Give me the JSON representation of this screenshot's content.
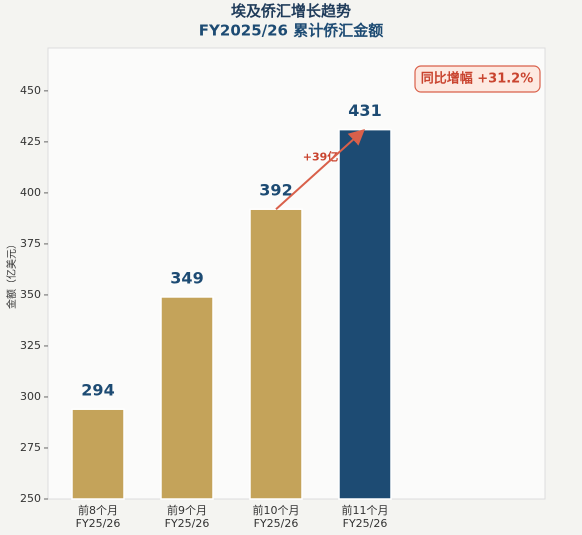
{
  "chart_data": {
    "type": "bar",
    "title": "埃及侨汇增长趋势",
    "subtitle": "FY2025/26 累计侨汇金额",
    "y_label": "金额（亿美元）",
    "categories": [
      "前8个月\nFY25/26",
      "前9个月\nFY25/26",
      "前10个月\nFY25/26",
      "前11个月\nFY25/26"
    ],
    "values": [
      294,
      349,
      392,
      431
    ],
    "colors": [
      "#c4a35a",
      "#c4a35a",
      "#c4a35a",
      "#1d4b73"
    ],
    "ylim": [
      250,
      471
    ],
    "yticks": [
      250,
      275,
      300,
      325,
      350,
      375,
      400,
      425,
      450
    ],
    "annotations": {
      "growth": "+39亿",
      "yoy": "同比增幅 +31.2%"
    }
  }
}
